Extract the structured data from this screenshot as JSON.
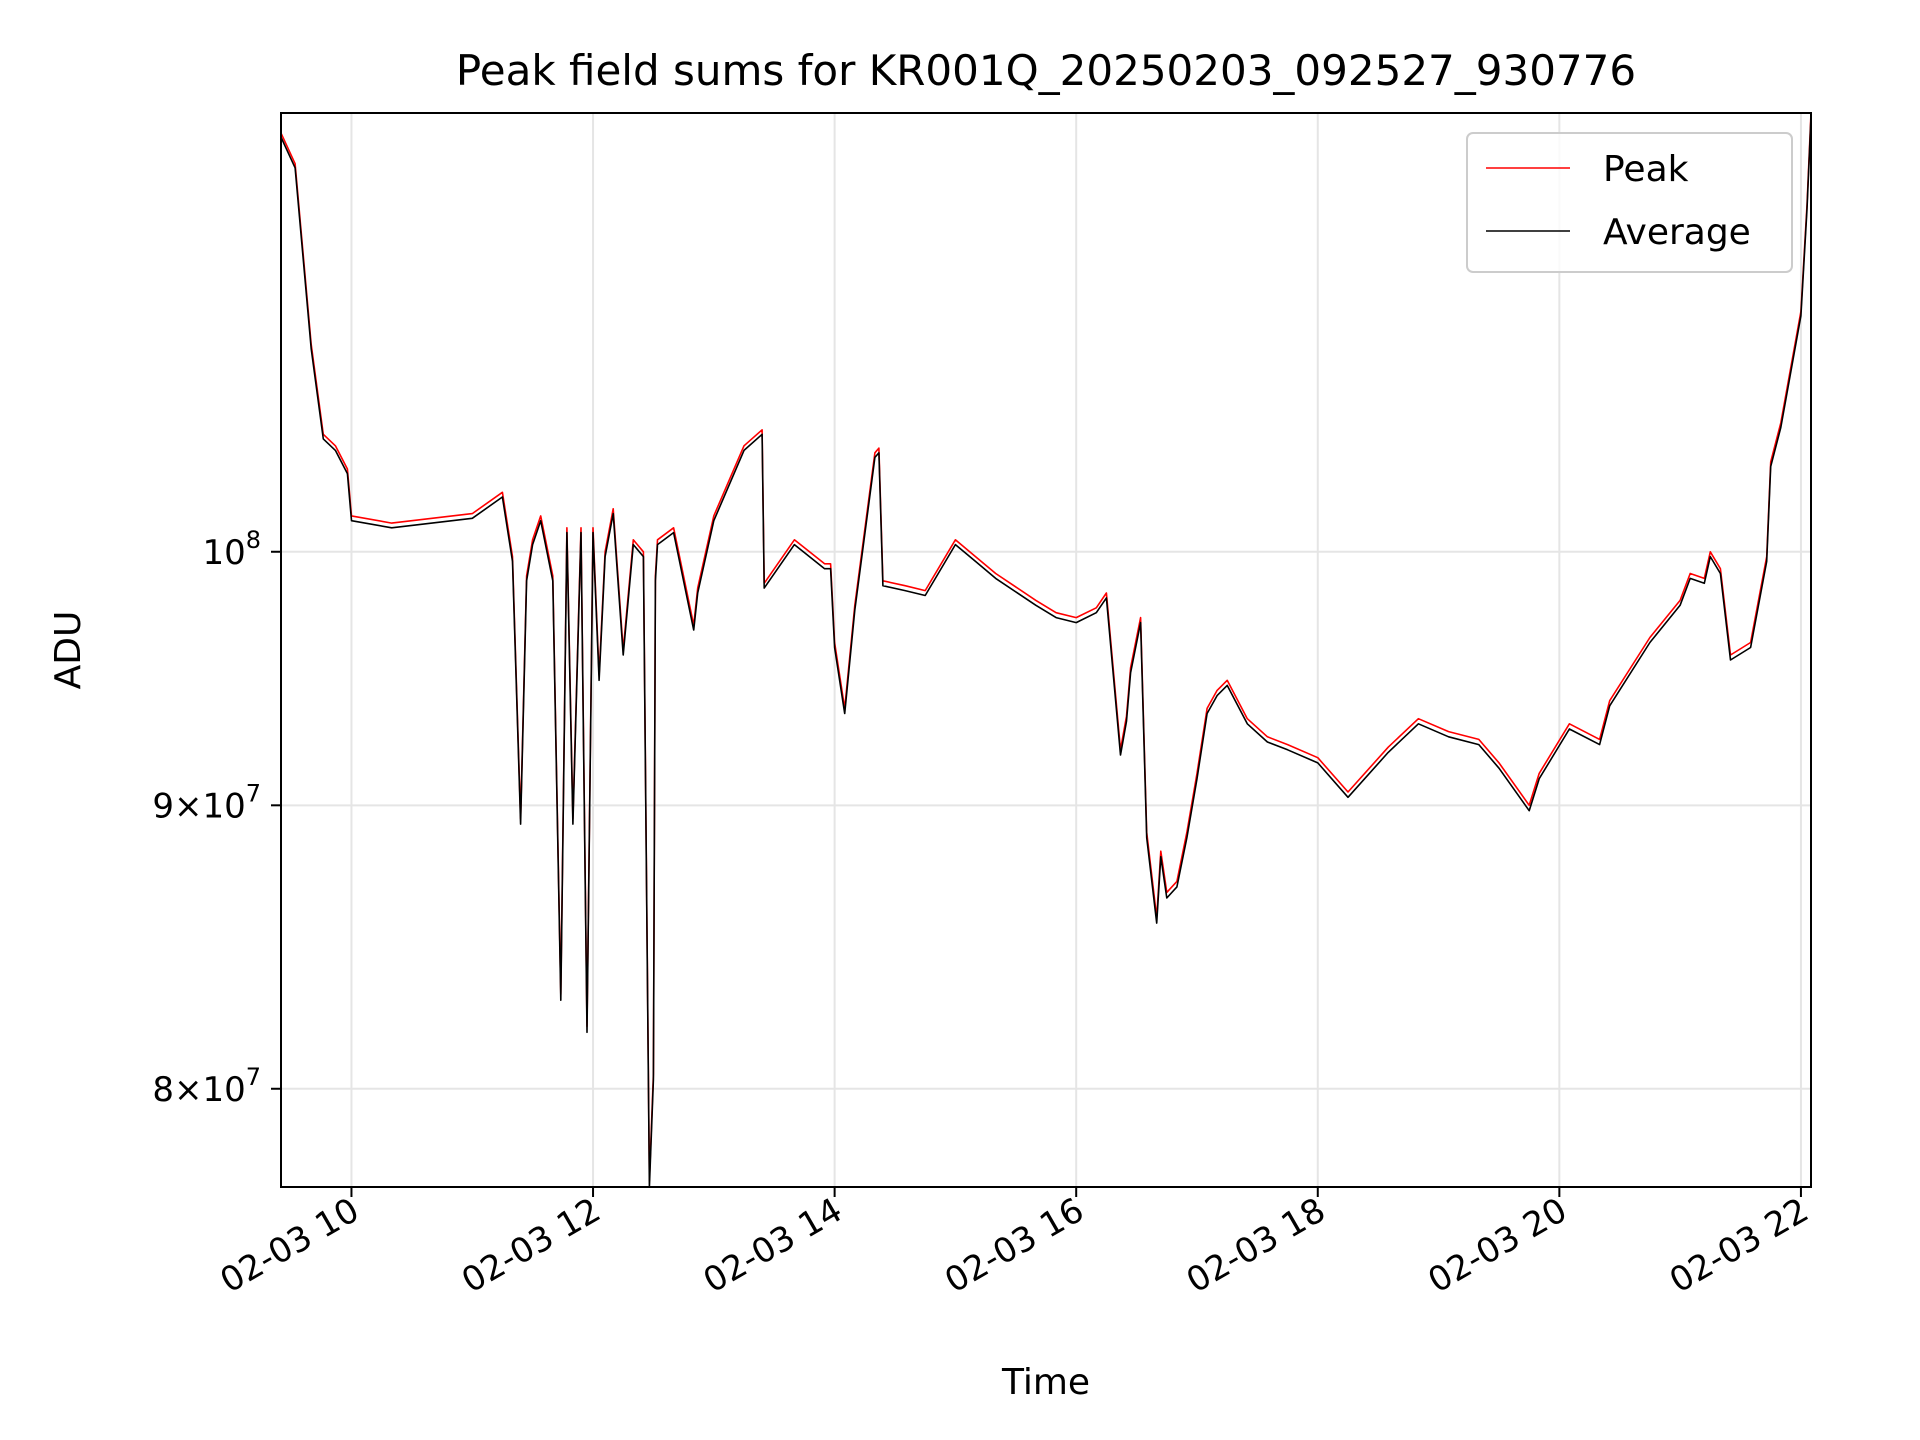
{
  "chart_data": {
    "type": "line",
    "title": "Peak field sums for KR001Q_20250203_092527_930776",
    "xlabel": "Time",
    "ylabel": "ADU",
    "x_start": "2025-02-03 09:25",
    "x_end": "2025-02-03 22:05",
    "xlim": [
      "2025-02-03 09:25",
      "2025-02-03 22:05"
    ],
    "ylim": [
      76800000,
      120000000
    ],
    "y_scale": "log",
    "grid": true,
    "legend_position": "top-right",
    "x_ticks": [
      {
        "value": "2025-02-03 10:00",
        "label": "02-03 10"
      },
      {
        "value": "2025-02-03 12:00",
        "label": "02-03 12"
      },
      {
        "value": "2025-02-03 14:00",
        "label": "02-03 14"
      },
      {
        "value": "2025-02-03 16:00",
        "label": "02-03 16"
      },
      {
        "value": "2025-02-03 18:00",
        "label": "02-03 18"
      },
      {
        "value": "2025-02-03 20:00",
        "label": "02-03 20"
      },
      {
        "value": "2025-02-03 22:00",
        "label": "02-03 22"
      }
    ],
    "y_ticks": [
      {
        "value": 80000000,
        "base": "8",
        "exp": "7",
        "mult": true
      },
      {
        "value": 90000000,
        "base": "9",
        "exp": "7",
        "mult": true
      },
      {
        "value": 100000000,
        "base": "10",
        "exp": "8",
        "mult": false
      }
    ],
    "series": [
      {
        "name": "Peak",
        "color": "#ff0000",
        "x": [
          "2025-02-03 09:25",
          "2025-02-03 09:32",
          "2025-02-03 09:40",
          "2025-02-03 09:46",
          "2025-02-03 09:52",
          "2025-02-03 09:58",
          "2025-02-03 10:00",
          "2025-02-03 10:20",
          "2025-02-03 10:40",
          "2025-02-03 11:00",
          "2025-02-03 11:15",
          "2025-02-03 11:20",
          "2025-02-03 11:24",
          "2025-02-03 11:27",
          "2025-02-03 11:30",
          "2025-02-03 11:34",
          "2025-02-03 11:40",
          "2025-02-03 11:44",
          "2025-02-03 11:47",
          "2025-02-03 11:50",
          "2025-02-03 11:54",
          "2025-02-03 11:57",
          "2025-02-03 12:00",
          "2025-02-03 12:03",
          "2025-02-03 12:06",
          "2025-02-03 12:10",
          "2025-02-03 12:15",
          "2025-02-03 12:20",
          "2025-02-03 12:25",
          "2025-02-03 12:28",
          "2025-02-03 12:30",
          "2025-02-03 12:31",
          "2025-02-03 12:32",
          "2025-02-03 12:40",
          "2025-02-03 12:50",
          "2025-02-03 12:52",
          "2025-02-03 13:00",
          "2025-02-03 13:15",
          "2025-02-03 13:24",
          "2025-02-03 13:25",
          "2025-02-03 13:40",
          "2025-02-03 13:55",
          "2025-02-03 13:58",
          "2025-02-03 14:00",
          "2025-02-03 14:05",
          "2025-02-03 14:10",
          "2025-02-03 14:20",
          "2025-02-03 14:22",
          "2025-02-03 14:24",
          "2025-02-03 14:35",
          "2025-02-03 14:45",
          "2025-02-03 15:00",
          "2025-02-03 15:10",
          "2025-02-03 15:20",
          "2025-02-03 15:40",
          "2025-02-03 15:50",
          "2025-02-03 16:00",
          "2025-02-03 16:10",
          "2025-02-03 16:15",
          "2025-02-03 16:22",
          "2025-02-03 16:25",
          "2025-02-03 16:27",
          "2025-02-03 16:32",
          "2025-02-03 16:35",
          "2025-02-03 16:40",
          "2025-02-03 16:42",
          "2025-02-03 16:45",
          "2025-02-03 16:50",
          "2025-02-03 16:55",
          "2025-02-03 17:00",
          "2025-02-03 17:05",
          "2025-02-03 17:10",
          "2025-02-03 17:15",
          "2025-02-03 17:25",
          "2025-02-03 17:35",
          "2025-02-03 17:45",
          "2025-02-03 18:00",
          "2025-02-03 18:15",
          "2025-02-03 18:35",
          "2025-02-03 18:50",
          "2025-02-03 19:05",
          "2025-02-03 19:20",
          "2025-02-03 19:30",
          "2025-02-03 19:45",
          "2025-02-03 19:50",
          "2025-02-03 20:05",
          "2025-02-03 20:20",
          "2025-02-03 20:25",
          "2025-02-03 20:45",
          "2025-02-03 21:00",
          "2025-02-03 21:05",
          "2025-02-03 21:12",
          "2025-02-03 21:15",
          "2025-02-03 21:20",
          "2025-02-03 21:25",
          "2025-02-03 21:35",
          "2025-02-03 21:43",
          "2025-02-03 21:45",
          "2025-02-03 21:50",
          "2025-02-03 22:00",
          "2025-02-03 22:03",
          "2025-02-03 22:05"
        ],
        "y": [
          119000000,
          117500000,
          109000000,
          105000000,
          104500000,
          103500000,
          101500000,
          101200000,
          101400000,
          101600000,
          102500000,
          99800000,
          89500000,
          99000000,
          100500000,
          101500000,
          99000000,
          83200000,
          101000000,
          89500000,
          101000000,
          82100000,
          101000000,
          95000000,
          100000000,
          101800000,
          96000000,
          100500000,
          100000000,
          77000000,
          80500000,
          99000000,
          100500000,
          101000000,
          97000000,
          98500000,
          101500000,
          104500000,
          105200000,
          98700000,
          100500000,
          99500000,
          99500000,
          96300000,
          93700000,
          97800000,
          104200000,
          104400000,
          98800000,
          98600000,
          98400000,
          100500000,
          99800000,
          99100000,
          98000000,
          97500000,
          97300000,
          97700000,
          98300000,
          92100000,
          93400000,
          95300000,
          97300000,
          89000000,
          85900000,
          88300000,
          86800000,
          87200000,
          89000000,
          91200000,
          93700000,
          94400000,
          94800000,
          93300000,
          92600000,
          92300000,
          91800000,
          90500000,
          92200000,
          93300000,
          92800000,
          92500000,
          91600000,
          90000000,
          91200000,
          93100000,
          92500000,
          94000000,
          96500000,
          98000000,
          99100000,
          98900000,
          100000000,
          99300000,
          95800000,
          96300000,
          99800000,
          103800000,
          105500000,
          110500000,
          115500000,
          120000000
        ]
      },
      {
        "name": "Average",
        "color": "#000000",
        "x": [
          "2025-02-03 09:25",
          "2025-02-03 09:32",
          "2025-02-03 09:40",
          "2025-02-03 09:46",
          "2025-02-03 09:52",
          "2025-02-03 09:58",
          "2025-02-03 10:00",
          "2025-02-03 10:20",
          "2025-02-03 10:40",
          "2025-02-03 11:00",
          "2025-02-03 11:15",
          "2025-02-03 11:20",
          "2025-02-03 11:24",
          "2025-02-03 11:27",
          "2025-02-03 11:30",
          "2025-02-03 11:34",
          "2025-02-03 11:40",
          "2025-02-03 11:44",
          "2025-02-03 11:47",
          "2025-02-03 11:50",
          "2025-02-03 11:54",
          "2025-02-03 11:57",
          "2025-02-03 12:00",
          "2025-02-03 12:03",
          "2025-02-03 12:06",
          "2025-02-03 12:10",
          "2025-02-03 12:15",
          "2025-02-03 12:20",
          "2025-02-03 12:25",
          "2025-02-03 12:28",
          "2025-02-03 12:30",
          "2025-02-03 12:31",
          "2025-02-03 12:32",
          "2025-02-03 12:40",
          "2025-02-03 12:50",
          "2025-02-03 12:52",
          "2025-02-03 13:00",
          "2025-02-03 13:15",
          "2025-02-03 13:24",
          "2025-02-03 13:25",
          "2025-02-03 13:40",
          "2025-02-03 13:55",
          "2025-02-03 13:58",
          "2025-02-03 14:00",
          "2025-02-03 14:05",
          "2025-02-03 14:10",
          "2025-02-03 14:20",
          "2025-02-03 14:22",
          "2025-02-03 14:24",
          "2025-02-03 14:35",
          "2025-02-03 14:45",
          "2025-02-03 15:00",
          "2025-02-03 15:10",
          "2025-02-03 15:20",
          "2025-02-03 15:40",
          "2025-02-03 15:50",
          "2025-02-03 16:00",
          "2025-02-03 16:10",
          "2025-02-03 16:15",
          "2025-02-03 16:22",
          "2025-02-03 16:25",
          "2025-02-03 16:27",
          "2025-02-03 16:32",
          "2025-02-03 16:35",
          "2025-02-03 16:40",
          "2025-02-03 16:42",
          "2025-02-03 16:45",
          "2025-02-03 16:50",
          "2025-02-03 16:55",
          "2025-02-03 17:00",
          "2025-02-03 17:05",
          "2025-02-03 17:10",
          "2025-02-03 17:15",
          "2025-02-03 17:25",
          "2025-02-03 17:35",
          "2025-02-03 17:45",
          "2025-02-03 18:00",
          "2025-02-03 18:15",
          "2025-02-03 18:35",
          "2025-02-03 18:50",
          "2025-02-03 19:05",
          "2025-02-03 19:20",
          "2025-02-03 19:30",
          "2025-02-03 19:45",
          "2025-02-03 19:50",
          "2025-02-03 20:05",
          "2025-02-03 20:20",
          "2025-02-03 20:25",
          "2025-02-03 20:45",
          "2025-02-03 21:00",
          "2025-02-03 21:05",
          "2025-02-03 21:12",
          "2025-02-03 21:15",
          "2025-02-03 21:20",
          "2025-02-03 21:25",
          "2025-02-03 21:35",
          "2025-02-03 21:43",
          "2025-02-03 21:45",
          "2025-02-03 21:50",
          "2025-02-03 22:00",
          "2025-02-03 22:03",
          "2025-02-03 22:05"
        ],
        "y": [
          118800000,
          117300000,
          108800000,
          104800000,
          104300000,
          103300000,
          101300000,
          101000000,
          101200000,
          101400000,
          102300000,
          99600000,
          89300000,
          98800000,
          100300000,
          101300000,
          98800000,
          83000000,
          100800000,
          89300000,
          100800000,
          81900000,
          100800000,
          94800000,
          99800000,
          101600000,
          95800000,
          100300000,
          99800000,
          76800000,
          80300000,
          98800000,
          100300000,
          100800000,
          96800000,
          98300000,
          101300000,
          104300000,
          105000000,
          98500000,
          100300000,
          99300000,
          99300000,
          96100000,
          93500000,
          97600000,
          104000000,
          104200000,
          98600000,
          98400000,
          98200000,
          100300000,
          99600000,
          98900000,
          97800000,
          97300000,
          97100000,
          97500000,
          98100000,
          91900000,
          93200000,
          95100000,
          97100000,
          88800000,
          85700000,
          88100000,
          86600000,
          87000000,
          88800000,
          91000000,
          93500000,
          94200000,
          94600000,
          93100000,
          92400000,
          92100000,
          91600000,
          90300000,
          92000000,
          93100000,
          92600000,
          92300000,
          91400000,
          89800000,
          91000000,
          92900000,
          92300000,
          93800000,
          96300000,
          97800000,
          98900000,
          98700000,
          99800000,
          99100000,
          95600000,
          96100000,
          99600000,
          103600000,
          105300000,
          110300000,
          115300000,
          119800000
        ]
      }
    ]
  }
}
